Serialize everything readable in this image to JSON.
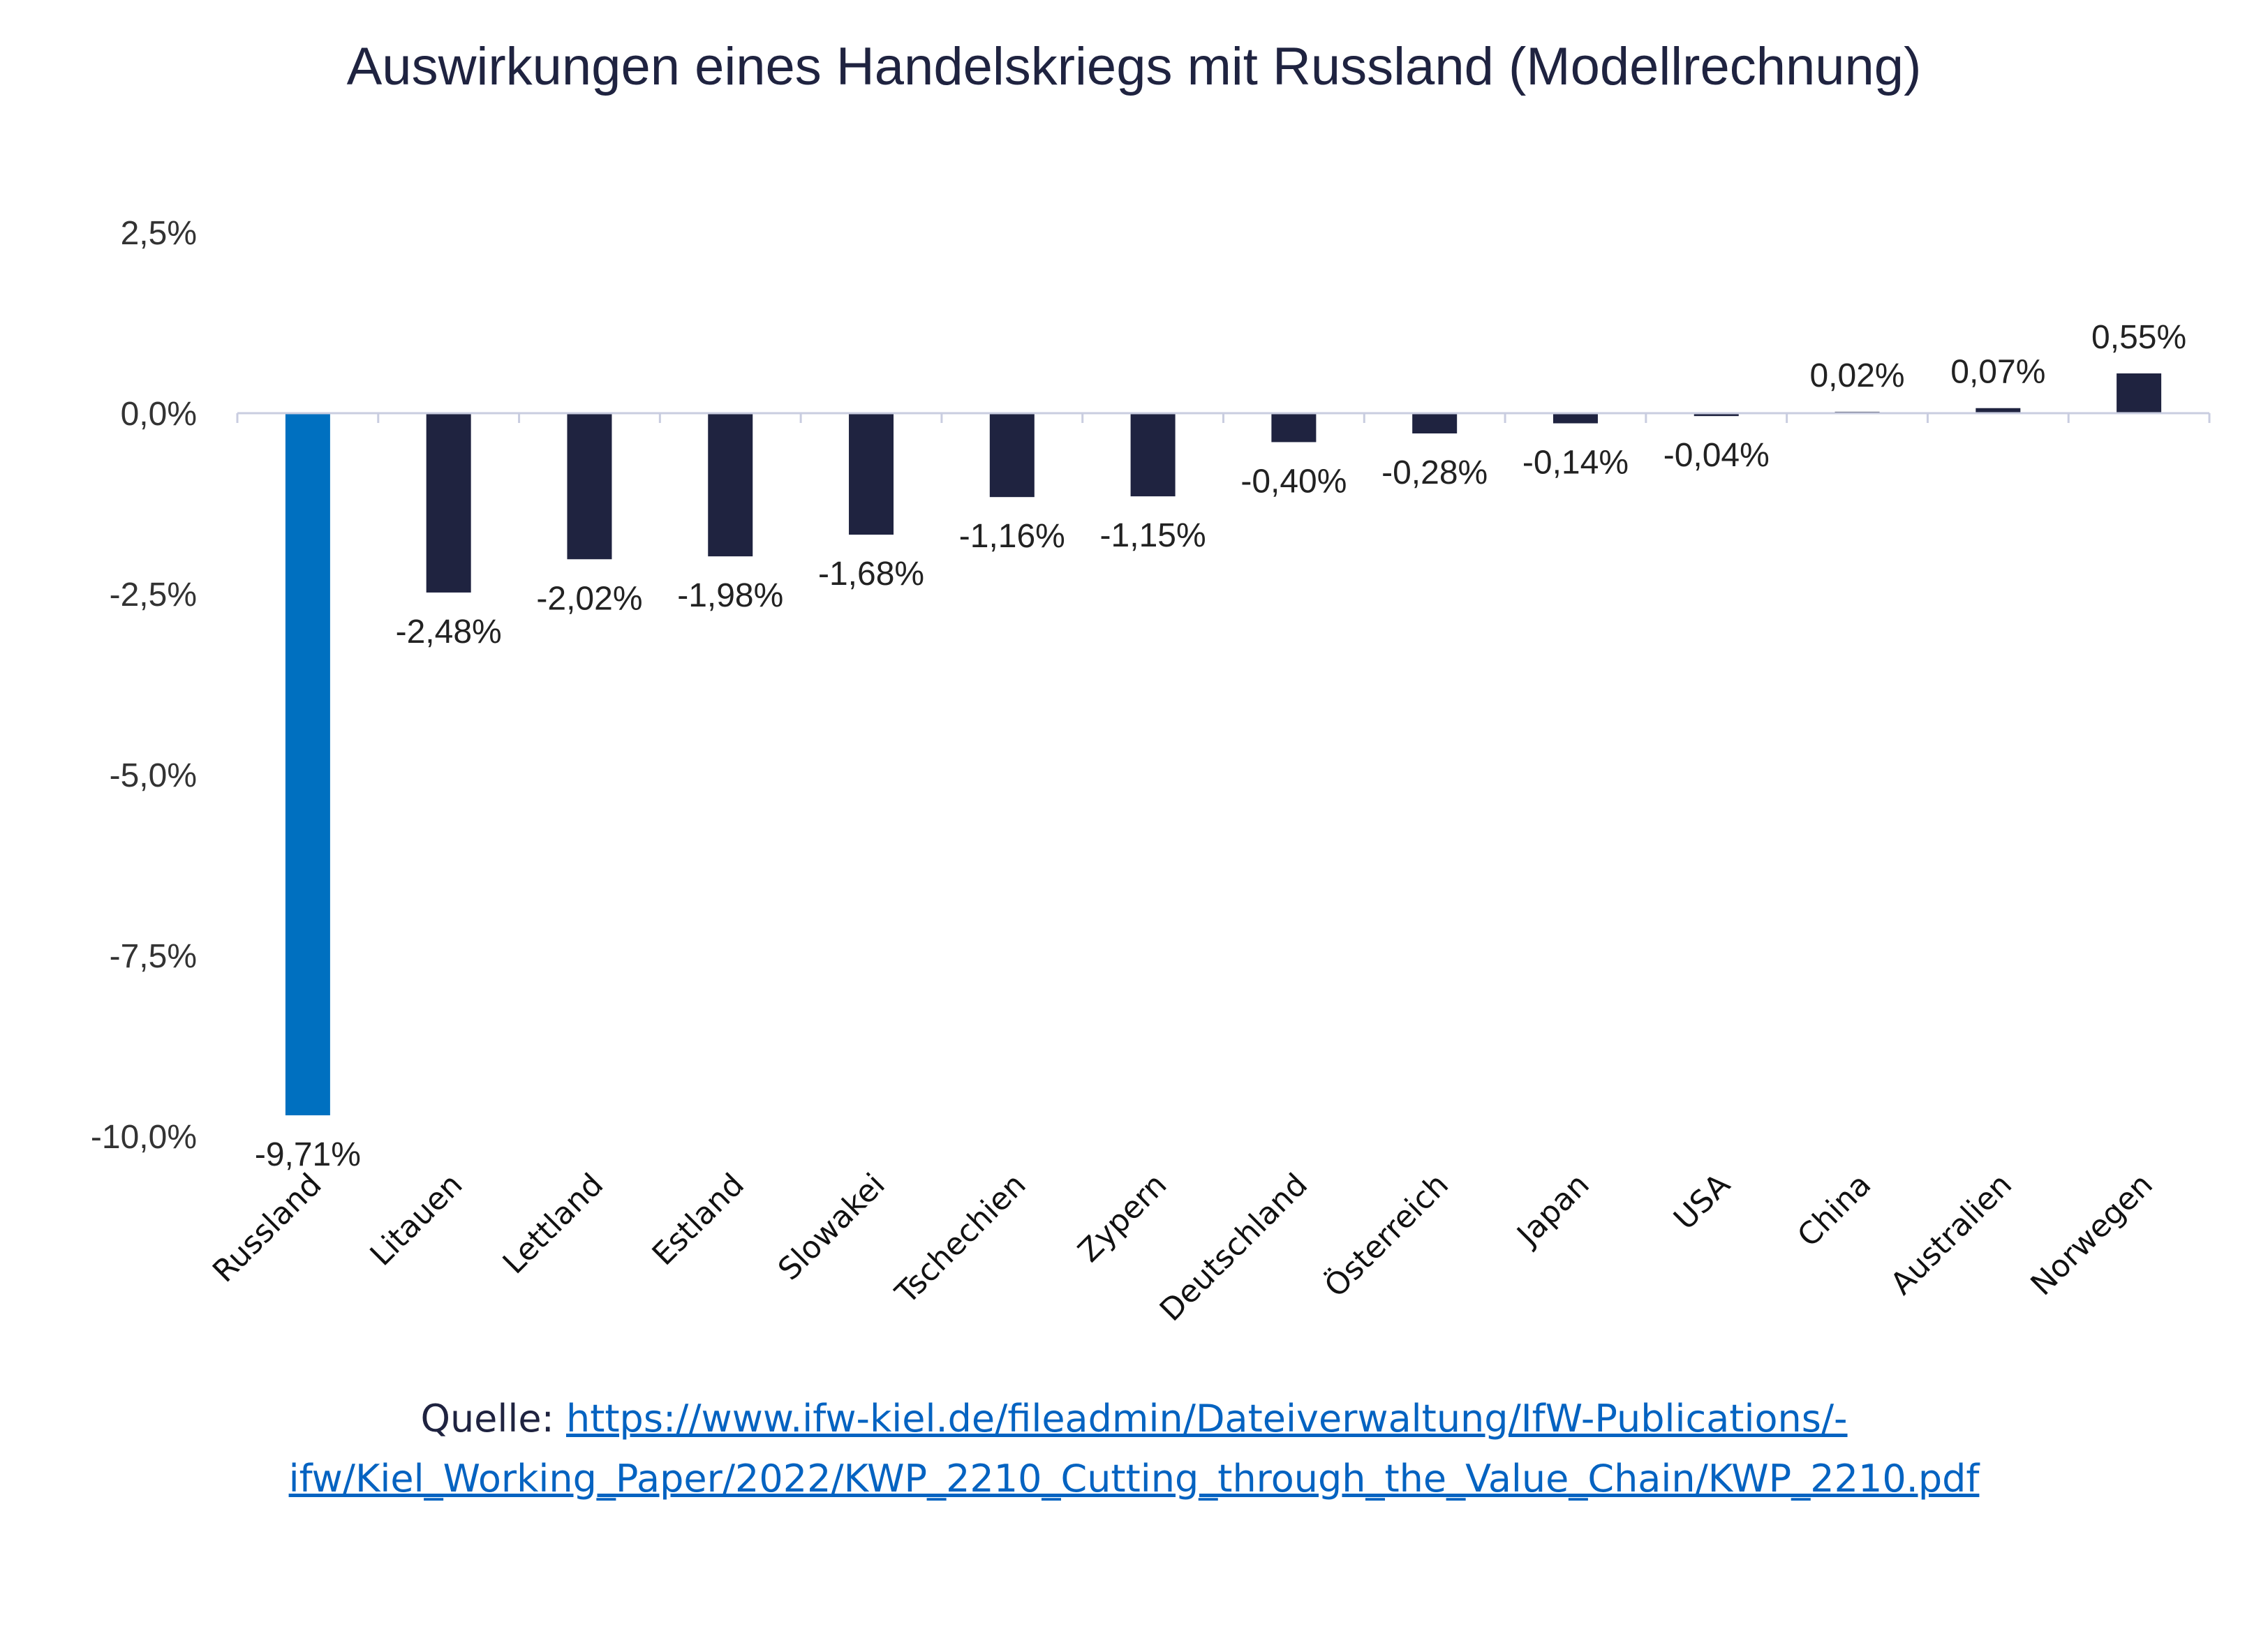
{
  "chart_data": {
    "type": "bar",
    "title": "Auswirkungen eines Handelskriegs mit Russland (Modellrechnung)",
    "xlabel": "",
    "ylabel": "",
    "ylim": [
      -10.0,
      2.5
    ],
    "yticks": [
      2.5,
      0.0,
      -2.5,
      -5.0,
      -7.5,
      -10.0
    ],
    "ytick_labels": [
      "2,5%",
      "0,0%",
      "-2,5%",
      "-5,0%",
      "-7,5%",
      "-10,0%"
    ],
    "grid": false,
    "legend": "none",
    "categories": [
      "Russland",
      "Litauen",
      "Lettland",
      "Estland",
      "Slowakei",
      "Tschechien",
      "Zypern",
      "Deutschland",
      "Österreich",
      "Japan",
      "USA",
      "China",
      "Australien",
      "Norwegen"
    ],
    "values": [
      -9.71,
      -2.48,
      -2.02,
      -1.98,
      -1.68,
      -1.16,
      -1.15,
      -0.4,
      -0.28,
      -0.14,
      -0.04,
      0.02,
      0.07,
      0.55
    ],
    "value_labels": [
      "-9,71%",
      "-2,48%",
      "-2,02%",
      "-1,98%",
      "-1,68%",
      "-1,16%",
      "-1,15%",
      "-0,40%",
      "-0,28%",
      "-0,14%",
      "-0,04%",
      "0,02%",
      "0,07%",
      "0,55%"
    ],
    "colors": {
      "highlight": "#0070c0",
      "default": "#1f2340",
      "axis": "#c9cde0"
    },
    "highlight_index": 0
  },
  "source": {
    "prefix": "Quelle: ",
    "url_line1": "https://www.ifw-kiel.de/fileadmin/Dateiverwaltung/IfW-Publications/-",
    "url_line2": "ifw/Kiel_Working_Paper/2022/KWP_2210_Cutting_through_the_Value_Chain/KWP_2210.pdf"
  }
}
